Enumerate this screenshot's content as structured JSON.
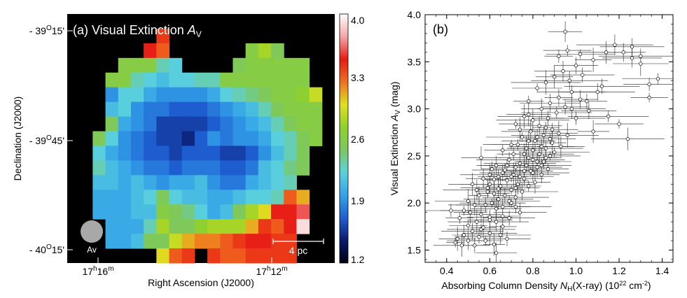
{
  "chart_data": [
    {
      "type": "heatmap",
      "panel_label": "(a) Visual Extinction ",
      "panel_symbol": "A",
      "panel_symbol_sub": "V",
      "xlabel": "Right Ascension (J2000)",
      "ylabel": "Declination (J2000)",
      "x_ticks": [
        {
          "h": "17",
          "m": "16"
        },
        {
          "h": "17",
          "m": "12"
        }
      ],
      "y_ticks": [
        {
          "deg": "- 39",
          "min": "15'"
        },
        {
          "deg": "- 39",
          "min": "45'"
        },
        {
          "deg": "- 40",
          "min": "15'"
        }
      ],
      "beam_label": "Av",
      "scale_bar_label": "4 pc",
      "colorbar": {
        "range": [
          1.2,
          4.0
        ],
        "ticks": [
          "4.0",
          "3.3",
          "2.6",
          "1.9",
          "1.2"
        ],
        "stops": [
          "#000010",
          "#0a1a6e",
          "#1f5fd4",
          "#33a4e8",
          "#5cd1dc",
          "#7cc860",
          "#8fd12a",
          "#e0e020",
          "#f07020",
          "#e81a12",
          "#f4a6a6",
          "#ffffff"
        ]
      },
      "grid_cols": 21,
      "grid_rows": 17,
      "grid": [
        [
          0,
          0,
          0,
          0,
          0,
          0,
          0,
          0,
          0,
          0,
          0,
          0,
          0,
          0,
          0,
          0,
          0,
          0,
          0,
          0,
          0
        ],
        [
          0,
          0,
          0,
          0,
          0,
          0,
          0,
          3.4,
          0,
          0,
          0,
          0,
          0,
          0,
          0,
          0,
          0,
          0,
          0,
          0,
          0
        ],
        [
          0,
          0,
          0,
          0,
          0,
          0,
          3.5,
          3.3,
          0,
          0,
          0,
          0,
          0,
          0,
          2.6,
          2.8,
          2.5,
          0,
          0,
          0,
          0
        ],
        [
          0,
          0,
          0,
          0,
          2.6,
          2.6,
          2.6,
          2.3,
          2.2,
          0,
          0,
          0,
          0,
          2.5,
          2.6,
          2.6,
          2.6,
          2.6,
          2.6,
          0,
          0
        ],
        [
          0,
          0,
          0,
          2.6,
          2.6,
          2.3,
          2.2,
          2.1,
          2.2,
          2.2,
          2.3,
          2.3,
          2.6,
          2.6,
          2.6,
          2.6,
          2.6,
          2.6,
          2.6,
          0,
          0
        ],
        [
          0,
          0,
          0,
          1.9,
          2.2,
          2.2,
          2.0,
          1.9,
          1.9,
          1.9,
          1.9,
          2.0,
          2.2,
          2.3,
          2.4,
          2.5,
          2.6,
          2.6,
          2.7,
          2.9,
          0
        ],
        [
          0,
          0,
          0,
          2.1,
          2.2,
          1.9,
          1.8,
          1.8,
          1.7,
          1.7,
          1.7,
          1.8,
          1.9,
          2.0,
          2.1,
          2.3,
          2.5,
          2.6,
          2.6,
          2.6,
          0
        ],
        [
          0,
          0,
          0,
          2.5,
          2.0,
          1.9,
          1.8,
          1.6,
          1.6,
          1.6,
          1.6,
          1.7,
          1.8,
          1.9,
          2.0,
          2.1,
          2.3,
          2.5,
          2.6,
          2.6,
          0
        ],
        [
          0,
          0,
          2.5,
          2.2,
          1.9,
          1.8,
          1.7,
          1.6,
          1.6,
          1.5,
          1.7,
          1.9,
          1.8,
          1.9,
          1.9,
          2.0,
          2.2,
          2.3,
          2.5,
          2.6,
          0
        ],
        [
          0,
          0,
          2.2,
          2.0,
          1.9,
          1.8,
          1.7,
          1.7,
          1.6,
          1.7,
          1.7,
          1.7,
          1.6,
          1.6,
          1.7,
          1.9,
          2.1,
          2.3,
          2.5,
          0,
          0
        ],
        [
          0,
          0,
          2.3,
          2.1,
          2.0,
          1.9,
          1.8,
          1.8,
          1.7,
          1.8,
          1.8,
          1.8,
          1.7,
          1.7,
          1.8,
          2.1,
          2.2,
          2.4,
          2.5,
          0,
          0
        ],
        [
          0,
          0,
          2.1,
          2.1,
          2.0,
          2.1,
          2.0,
          1.9,
          2.0,
          2.0,
          2.1,
          1.9,
          1.8,
          1.8,
          2.0,
          2.1,
          2.2,
          2.3,
          0,
          0,
          0
        ],
        [
          0,
          0,
          2.0,
          2.0,
          2.0,
          2.1,
          2.2,
          2.5,
          2.2,
          2.1,
          2.1,
          2.0,
          2.0,
          2.1,
          2.2,
          2.2,
          2.3,
          3.3,
          3.1,
          0,
          0
        ],
        [
          0,
          0,
          2.0,
          2.0,
          2.0,
          2.1,
          2.1,
          2.6,
          2.5,
          2.4,
          2.2,
          2.0,
          2.1,
          2.5,
          2.8,
          3.0,
          3.5,
          3.5,
          3.6,
          0,
          0
        ],
        [
          0,
          0,
          0,
          2.0,
          2.0,
          2.0,
          2.3,
          2.8,
          2.5,
          2.5,
          2.7,
          2.8,
          2.8,
          2.8,
          3.1,
          3.4,
          3.3,
          3.5,
          3.9,
          0,
          0
        ],
        [
          0,
          0,
          0,
          2.0,
          2.0,
          2.1,
          2.5,
          2.5,
          2.9,
          3.1,
          3.2,
          3.2,
          3.3,
          3.4,
          3.5,
          3.5,
          3.4,
          3.4,
          0,
          0,
          0
        ],
        [
          0,
          0,
          0,
          0,
          0,
          0,
          0,
          3.0,
          3.3,
          3.4,
          0,
          3.4,
          3.3,
          3.3,
          3.4,
          3.4,
          3.4,
          3.4,
          0,
          0,
          0
        ]
      ]
    },
    {
      "type": "scatter",
      "panel_label": "(b)",
      "xlabel_prefix": "Absorbing Column Density ",
      "xlabel_symbol": "N",
      "xlabel_sub": "H",
      "xlabel_suffix": "(X-ray) (10",
      "xlabel_exp1": "22",
      "xlabel_mid": " cm",
      "xlabel_exp2": "-2",
      "xlabel_end": ")",
      "ylabel_prefix": "Visual Extinction ",
      "ylabel_symbol": "A",
      "ylabel_sub": "V",
      "ylabel_suffix": " (mag)",
      "xlim": [
        0.3,
        1.45
      ],
      "ylim": [
        1.37,
        4.0
      ],
      "x_ticks": [
        0.4,
        0.6,
        0.8,
        1.0,
        1.2,
        1.4
      ],
      "x_tick_labels": [
        "0.4",
        "0.6",
        "0.8",
        "1.0",
        "1.2",
        "1.4"
      ],
      "y_ticks": [
        1.5,
        2.0,
        2.5,
        3.0,
        3.5,
        4.0
      ],
      "y_tick_labels": [
        "1.5",
        "2.0",
        "2.5",
        "3.0",
        "3.5",
        "4.0"
      ],
      "points": [
        [
          0.44,
          1.58
        ],
        [
          0.45,
          1.62
        ],
        [
          0.47,
          1.55
        ],
        [
          0.48,
          1.66
        ],
        [
          0.5,
          1.6
        ],
        [
          0.52,
          1.7
        ],
        [
          0.53,
          1.55
        ],
        [
          0.55,
          1.64
        ],
        [
          0.56,
          1.72
        ],
        [
          0.58,
          1.6
        ],
        [
          0.6,
          1.68
        ],
        [
          0.62,
          1.56
        ],
        [
          0.63,
          1.47
        ],
        [
          0.65,
          1.66
        ],
        [
          0.66,
          1.75
        ],
        [
          0.68,
          1.62
        ],
        [
          0.42,
          1.92
        ],
        [
          0.46,
          1.84
        ],
        [
          0.48,
          1.92
        ],
        [
          0.5,
          2.02
        ],
        [
          0.51,
          1.9
        ],
        [
          0.53,
          1.98
        ],
        [
          0.55,
          2.08
        ],
        [
          0.56,
          1.88
        ],
        [
          0.58,
          1.98
        ],
        [
          0.59,
          2.12
        ],
        [
          0.6,
          1.85
        ],
        [
          0.61,
          2.0
        ],
        [
          0.62,
          2.1
        ],
        [
          0.63,
          1.94
        ],
        [
          0.64,
          2.04
        ],
        [
          0.65,
          2.18
        ],
        [
          0.66,
          1.96
        ],
        [
          0.67,
          2.08
        ],
        [
          0.68,
          2.24
        ],
        [
          0.69,
          2.02
        ],
        [
          0.7,
          2.14
        ],
        [
          0.71,
          2.3
        ],
        [
          0.72,
          2.06
        ],
        [
          0.73,
          2.2
        ],
        [
          0.74,
          1.9
        ],
        [
          0.75,
          2.12
        ],
        [
          0.76,
          2.26
        ],
        [
          0.77,
          2.4
        ],
        [
          0.78,
          2.18
        ],
        [
          0.79,
          2.34
        ],
        [
          0.8,
          2.46
        ],
        [
          0.81,
          2.22
        ],
        [
          0.82,
          2.38
        ],
        [
          0.83,
          2.52
        ],
        [
          0.84,
          2.3
        ],
        [
          0.85,
          2.44
        ],
        [
          0.86,
          2.58
        ],
        [
          0.87,
          2.36
        ],
        [
          0.88,
          2.5
        ],
        [
          0.89,
          2.64
        ],
        [
          0.56,
          2.48
        ],
        [
          0.6,
          2.3
        ],
        [
          0.63,
          2.4
        ],
        [
          0.66,
          2.32
        ],
        [
          0.69,
          2.46
        ],
        [
          0.71,
          2.52
        ],
        [
          0.73,
          2.62
        ],
        [
          0.75,
          2.7
        ],
        [
          0.77,
          2.58
        ],
        [
          0.79,
          2.76
        ],
        [
          0.81,
          2.66
        ],
        [
          0.83,
          2.82
        ],
        [
          0.85,
          2.72
        ],
        [
          0.87,
          2.9
        ],
        [
          0.89,
          2.78
        ],
        [
          0.91,
          2.96
        ],
        [
          0.72,
          2.84
        ],
        [
          0.76,
          2.92
        ],
        [
          0.8,
          2.88
        ],
        [
          0.84,
          3.0
        ],
        [
          0.88,
          3.06
        ],
        [
          0.92,
          3.12
        ],
        [
          0.95,
          3.02
        ],
        [
          0.98,
          3.18
        ],
        [
          0.78,
          3.08
        ],
        [
          0.82,
          3.22
        ],
        [
          0.86,
          3.28
        ],
        [
          0.9,
          3.34
        ],
        [
          0.94,
          3.4
        ],
        [
          0.97,
          3.3
        ],
        [
          1.0,
          3.46
        ],
        [
          1.03,
          3.36
        ],
        [
          0.92,
          3.56
        ],
        [
          0.96,
          3.62
        ],
        [
          1.02,
          3.58
        ],
        [
          1.08,
          3.52
        ],
        [
          1.14,
          3.6
        ],
        [
          1.18,
          3.68
        ],
        [
          1.22,
          3.6
        ],
        [
          1.26,
          3.66
        ],
        [
          1.3,
          3.56
        ],
        [
          1.34,
          3.26
        ],
        [
          1.38,
          3.32
        ],
        [
          1.34,
          3.12
        ],
        [
          1.3,
          3.48
        ],
        [
          1.24,
          2.68
        ],
        [
          0.95,
          3.82
        ],
        [
          1.26,
          3.54
        ],
        [
          1.1,
          3.18
        ],
        [
          1.05,
          3.08
        ],
        [
          1.0,
          2.9
        ],
        [
          1.15,
          2.92
        ],
        [
          1.2,
          2.84
        ],
        [
          0.96,
          2.72
        ],
        [
          1.08,
          2.76
        ],
        [
          0.93,
          2.6
        ],
        [
          0.6,
          2.2
        ],
        [
          0.62,
          2.25
        ],
        [
          0.64,
          2.15
        ],
        [
          0.67,
          2.35
        ],
        [
          0.7,
          2.28
        ],
        [
          0.72,
          2.38
        ],
        [
          0.74,
          2.42
        ],
        [
          0.76,
          2.34
        ],
        [
          0.78,
          2.48
        ],
        [
          0.8,
          2.56
        ],
        [
          0.82,
          2.44
        ],
        [
          0.84,
          2.6
        ],
        [
          0.86,
          2.48
        ],
        [
          0.88,
          2.68
        ],
        [
          0.9,
          2.54
        ],
        [
          0.92,
          2.74
        ],
        [
          0.52,
          2.2
        ],
        [
          0.54,
          2.14
        ],
        [
          0.57,
          2.26
        ],
        [
          0.59,
          2.16
        ],
        [
          0.61,
          2.36
        ],
        [
          0.64,
          2.28
        ],
        [
          0.68,
          2.4
        ],
        [
          0.7,
          2.0
        ],
        [
          0.72,
          2.16
        ],
        [
          0.74,
          2.28
        ],
        [
          0.76,
          2.52
        ],
        [
          0.78,
          2.66
        ],
        [
          0.8,
          2.32
        ],
        [
          0.82,
          2.7
        ],
        [
          0.84,
          2.4
        ],
        [
          0.86,
          2.8
        ],
        [
          0.5,
          1.76
        ],
        [
          0.54,
          1.8
        ],
        [
          0.57,
          1.74
        ],
        [
          0.6,
          1.82
        ],
        [
          0.63,
          1.8
        ],
        [
          0.66,
          1.86
        ],
        [
          0.69,
          1.84
        ],
        [
          0.72,
          1.96
        ],
        [
          0.66,
          2.56
        ],
        [
          0.7,
          2.62
        ],
        [
          0.74,
          2.78
        ],
        [
          0.78,
          2.94
        ],
        [
          0.98,
          3.0
        ],
        [
          1.02,
          3.1
        ],
        [
          1.06,
          2.98
        ],
        [
          1.12,
          3.24
        ]
      ]
    }
  ]
}
